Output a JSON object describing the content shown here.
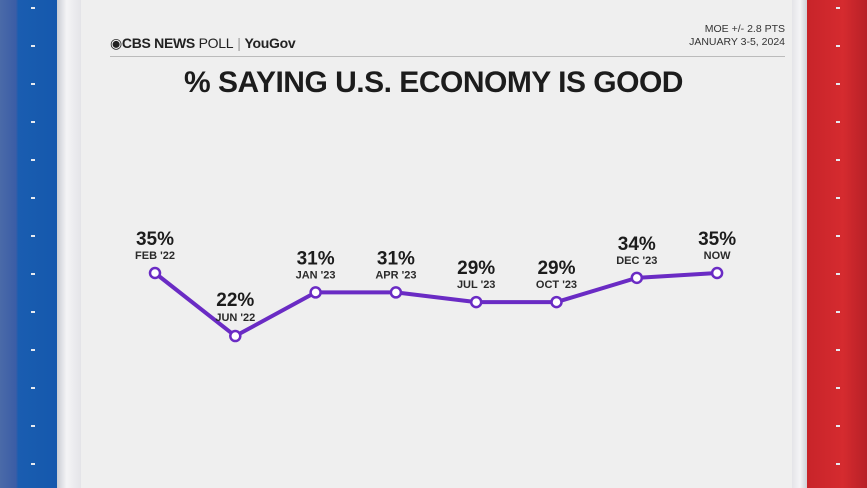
{
  "header": {
    "brand": "CBS NEWS",
    "poll": "POLL",
    "partner": "YouGov",
    "moe": "MOE +/- 2.8 PTS",
    "dates": "JANUARY 3-5, 2024"
  },
  "chart_data": {
    "type": "line",
    "title": "% SAYING U.S. ECONOMY IS GOOD",
    "categories": [
      "FEB '22",
      "JUN '22",
      "JAN '23",
      "APR '23",
      "JUL '23",
      "OCT '23",
      "DEC '23",
      "NOW"
    ],
    "values": [
      35,
      22,
      31,
      31,
      29,
      29,
      34,
      35
    ],
    "data_labels": [
      "35%",
      "22%",
      "31%",
      "31%",
      "29%",
      "29%",
      "34%",
      "35%"
    ],
    "line_color": "#6a2bc4",
    "grid": false
  }
}
